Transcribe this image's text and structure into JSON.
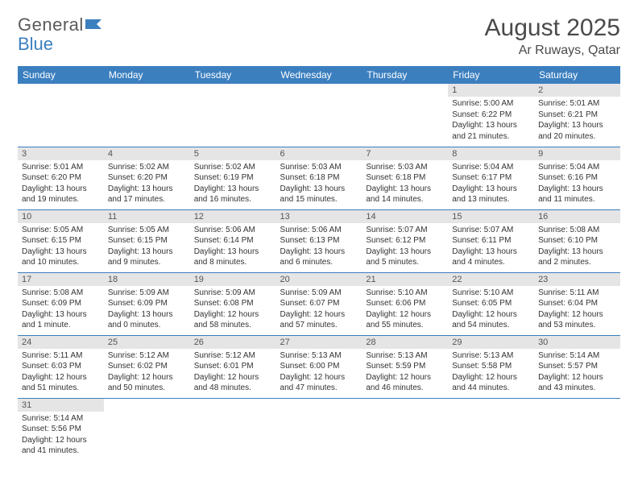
{
  "logo": {
    "text1": "General",
    "text2": "Blue"
  },
  "title": "August 2025",
  "location": "Ar Ruways, Qatar",
  "colors": {
    "header_bg": "#3b7fbf",
    "header_text": "#ffffff",
    "daynum_bg": "#e5e5e5",
    "border": "#3b7fbf",
    "body_bg": "#ffffff",
    "text": "#333333"
  },
  "weekdays": [
    "Sunday",
    "Monday",
    "Tuesday",
    "Wednesday",
    "Thursday",
    "Friday",
    "Saturday"
  ],
  "weeks": [
    [
      null,
      null,
      null,
      null,
      null,
      {
        "n": "1",
        "sr": "5:00 AM",
        "ss": "6:22 PM",
        "dl": "13 hours and 21 minutes."
      },
      {
        "n": "2",
        "sr": "5:01 AM",
        "ss": "6:21 PM",
        "dl": "13 hours and 20 minutes."
      }
    ],
    [
      {
        "n": "3",
        "sr": "5:01 AM",
        "ss": "6:20 PM",
        "dl": "13 hours and 19 minutes."
      },
      {
        "n": "4",
        "sr": "5:02 AM",
        "ss": "6:20 PM",
        "dl": "13 hours and 17 minutes."
      },
      {
        "n": "5",
        "sr": "5:02 AM",
        "ss": "6:19 PM",
        "dl": "13 hours and 16 minutes."
      },
      {
        "n": "6",
        "sr": "5:03 AM",
        "ss": "6:18 PM",
        "dl": "13 hours and 15 minutes."
      },
      {
        "n": "7",
        "sr": "5:03 AM",
        "ss": "6:18 PM",
        "dl": "13 hours and 14 minutes."
      },
      {
        "n": "8",
        "sr": "5:04 AM",
        "ss": "6:17 PM",
        "dl": "13 hours and 13 minutes."
      },
      {
        "n": "9",
        "sr": "5:04 AM",
        "ss": "6:16 PM",
        "dl": "13 hours and 11 minutes."
      }
    ],
    [
      {
        "n": "10",
        "sr": "5:05 AM",
        "ss": "6:15 PM",
        "dl": "13 hours and 10 minutes."
      },
      {
        "n": "11",
        "sr": "5:05 AM",
        "ss": "6:15 PM",
        "dl": "13 hours and 9 minutes."
      },
      {
        "n": "12",
        "sr": "5:06 AM",
        "ss": "6:14 PM",
        "dl": "13 hours and 8 minutes."
      },
      {
        "n": "13",
        "sr": "5:06 AM",
        "ss": "6:13 PM",
        "dl": "13 hours and 6 minutes."
      },
      {
        "n": "14",
        "sr": "5:07 AM",
        "ss": "6:12 PM",
        "dl": "13 hours and 5 minutes."
      },
      {
        "n": "15",
        "sr": "5:07 AM",
        "ss": "6:11 PM",
        "dl": "13 hours and 4 minutes."
      },
      {
        "n": "16",
        "sr": "5:08 AM",
        "ss": "6:10 PM",
        "dl": "13 hours and 2 minutes."
      }
    ],
    [
      {
        "n": "17",
        "sr": "5:08 AM",
        "ss": "6:09 PM",
        "dl": "13 hours and 1 minute."
      },
      {
        "n": "18",
        "sr": "5:09 AM",
        "ss": "6:09 PM",
        "dl": "13 hours and 0 minutes."
      },
      {
        "n": "19",
        "sr": "5:09 AM",
        "ss": "6:08 PM",
        "dl": "12 hours and 58 minutes."
      },
      {
        "n": "20",
        "sr": "5:09 AM",
        "ss": "6:07 PM",
        "dl": "12 hours and 57 minutes."
      },
      {
        "n": "21",
        "sr": "5:10 AM",
        "ss": "6:06 PM",
        "dl": "12 hours and 55 minutes."
      },
      {
        "n": "22",
        "sr": "5:10 AM",
        "ss": "6:05 PM",
        "dl": "12 hours and 54 minutes."
      },
      {
        "n": "23",
        "sr": "5:11 AM",
        "ss": "6:04 PM",
        "dl": "12 hours and 53 minutes."
      }
    ],
    [
      {
        "n": "24",
        "sr": "5:11 AM",
        "ss": "6:03 PM",
        "dl": "12 hours and 51 minutes."
      },
      {
        "n": "25",
        "sr": "5:12 AM",
        "ss": "6:02 PM",
        "dl": "12 hours and 50 minutes."
      },
      {
        "n": "26",
        "sr": "5:12 AM",
        "ss": "6:01 PM",
        "dl": "12 hours and 48 minutes."
      },
      {
        "n": "27",
        "sr": "5:13 AM",
        "ss": "6:00 PM",
        "dl": "12 hours and 47 minutes."
      },
      {
        "n": "28",
        "sr": "5:13 AM",
        "ss": "5:59 PM",
        "dl": "12 hours and 46 minutes."
      },
      {
        "n": "29",
        "sr": "5:13 AM",
        "ss": "5:58 PM",
        "dl": "12 hours and 44 minutes."
      },
      {
        "n": "30",
        "sr": "5:14 AM",
        "ss": "5:57 PM",
        "dl": "12 hours and 43 minutes."
      }
    ],
    [
      {
        "n": "31",
        "sr": "5:14 AM",
        "ss": "5:56 PM",
        "dl": "12 hours and 41 minutes."
      },
      null,
      null,
      null,
      null,
      null,
      null
    ]
  ],
  "labels": {
    "sunrise": "Sunrise:",
    "sunset": "Sunset:",
    "daylight": "Daylight:"
  }
}
